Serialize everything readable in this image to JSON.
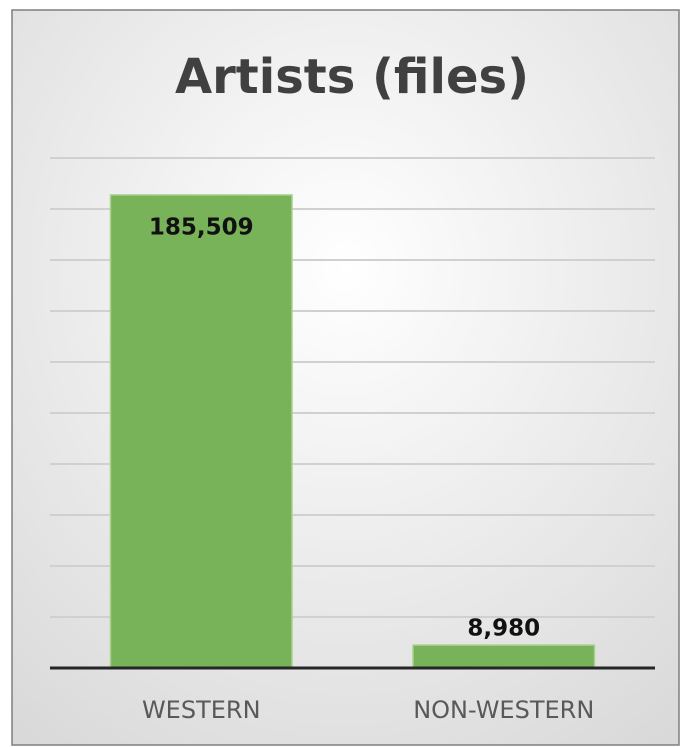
{
  "chart_data": {
    "type": "bar",
    "title": "Artists (files)",
    "categories": [
      "WESTERN",
      "NON-WESTERN"
    ],
    "values": [
      185509,
      8980
    ],
    "value_labels": [
      "185,509",
      "8,980"
    ],
    "color": "#78b35a",
    "ylim": [
      0,
      200000
    ],
    "yticks": [
      0,
      20000,
      40000,
      60000,
      80000,
      100000,
      120000,
      140000,
      160000,
      180000,
      200000
    ],
    "grid": true
  }
}
